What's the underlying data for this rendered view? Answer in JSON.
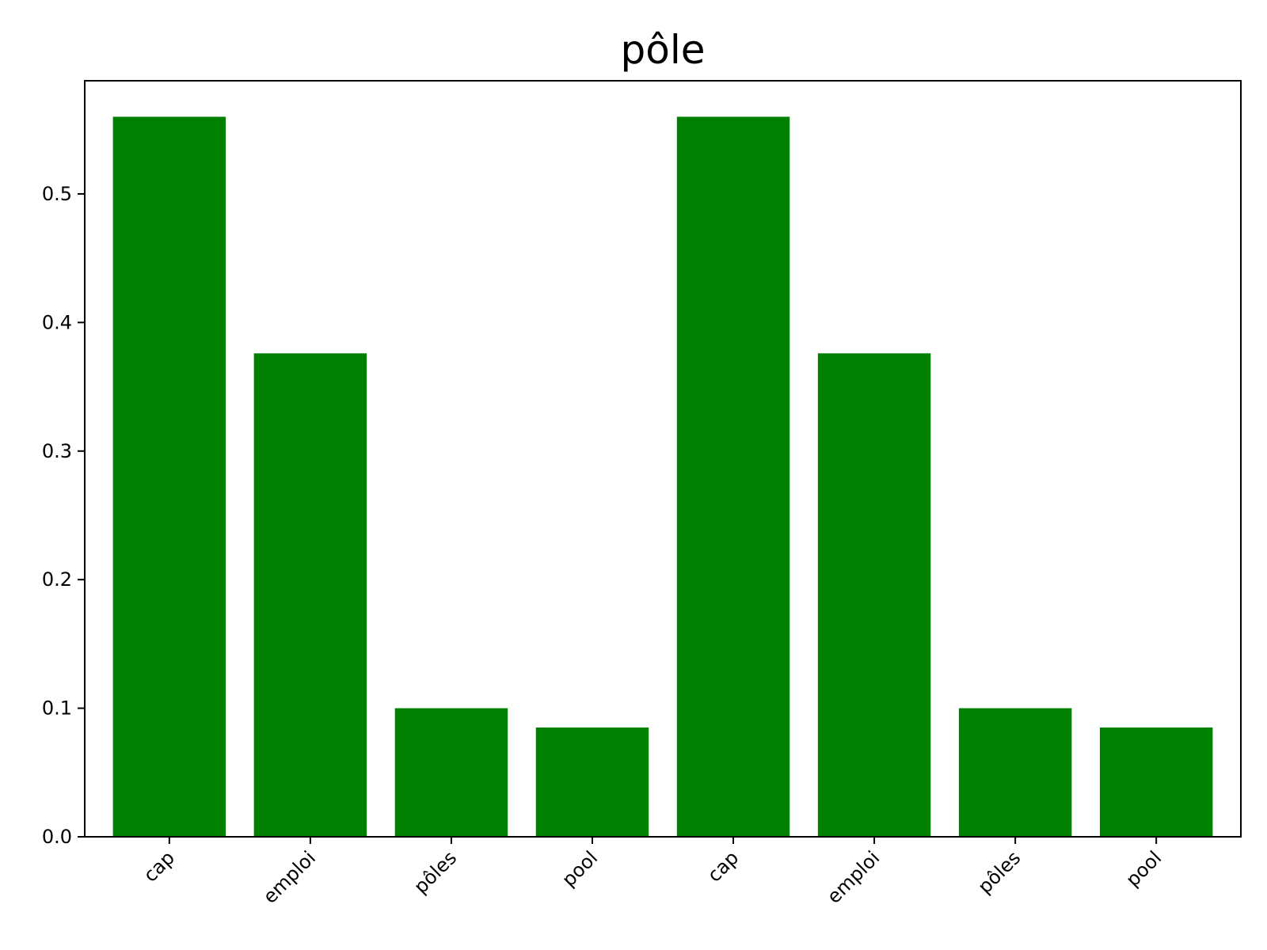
{
  "chart_data": {
    "type": "bar",
    "title": "pôle",
    "xlabel": "",
    "ylabel": "",
    "categories": [
      "cap",
      "emploi",
      "pôles",
      "pool",
      "cap",
      "emploi",
      "pôles",
      "pool"
    ],
    "values": [
      0.56,
      0.376,
      0.1,
      0.085,
      0.56,
      0.376,
      0.1,
      0.085
    ],
    "ylim": [
      0,
      0.588
    ],
    "yticks": [
      "0.0",
      "0.1",
      "0.2",
      "0.3",
      "0.4",
      "0.5"
    ],
    "bar_color": "#008000",
    "grid": false,
    "legend": "none"
  }
}
